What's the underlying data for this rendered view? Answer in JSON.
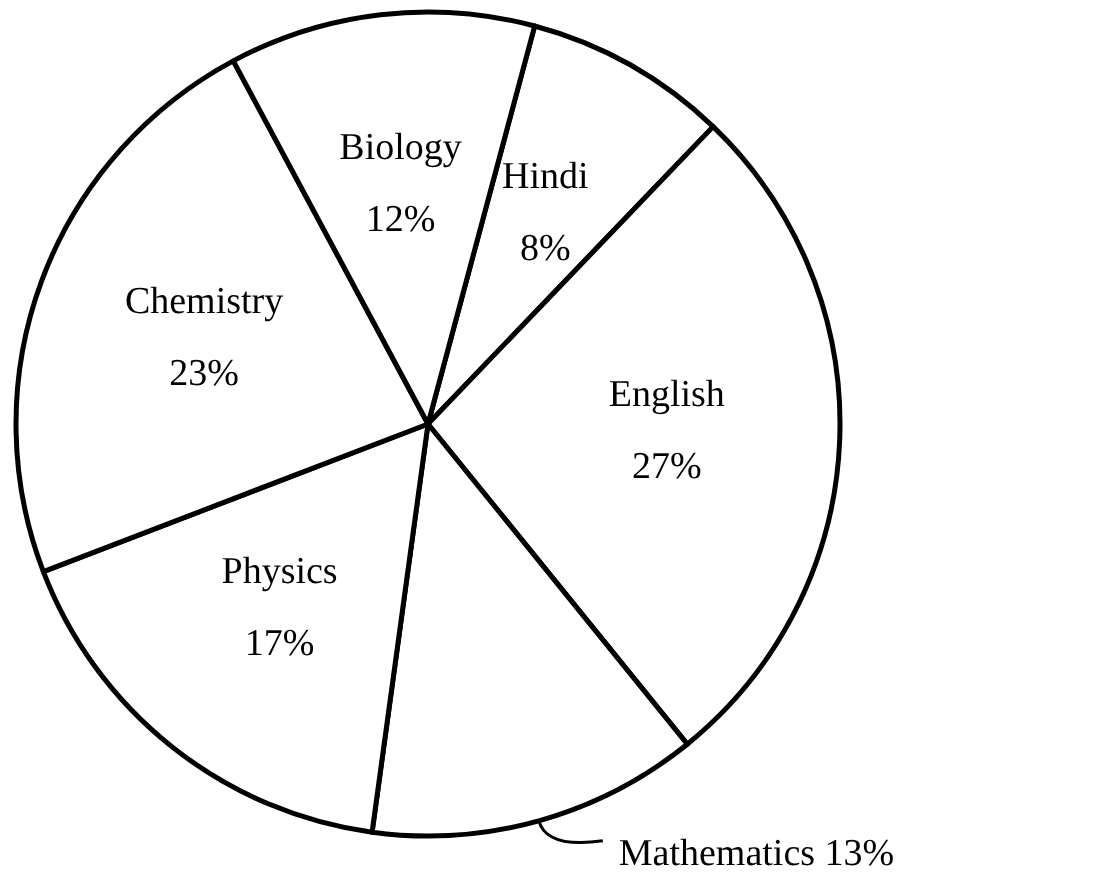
{
  "chart_data": {
    "type": "pie",
    "categories": [
      "Hindi",
      "English",
      "Mathematics",
      "Physics",
      "Chemistry",
      "Biology"
    ],
    "values": [
      8,
      27,
      13,
      17,
      23,
      12
    ],
    "value_labels": [
      "8%",
      "27%",
      "13%",
      "17%",
      "23%",
      "12%"
    ],
    "colors": [
      "#ffffff",
      "#ffffff",
      "#ffffff",
      "#ffffff",
      "#ffffff",
      "#ffffff"
    ]
  }
}
